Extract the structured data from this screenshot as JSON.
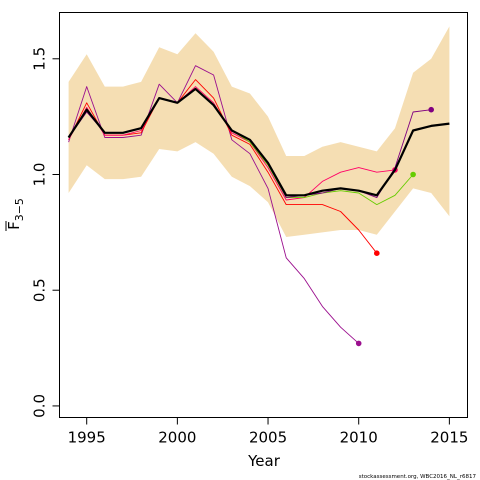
{
  "chart_data": {
    "type": "line",
    "xlabel": "Year",
    "ylabel": {
      "main": "F",
      "sub": "3−5"
    },
    "xlim": [
      1993.5,
      2016.0
    ],
    "ylim": [
      -0.05,
      1.7
    ],
    "x_ticks": [
      1995,
      2000,
      2005,
      2010,
      2015
    ],
    "y_ticks": [
      0.0,
      0.5,
      1.0,
      1.5
    ],
    "y_tick_labels": [
      "0.0",
      "0.5",
      "1.0",
      "1.5"
    ],
    "grid": false,
    "credit": "stockassessment.org, WBC2016_NL_r6817",
    "colors": {
      "band": "#f5deb3",
      "final": "#000000",
      "endpoint_2010": "#9b0f8e",
      "endpoint_2011": "#ff0000",
      "endpoint_2012": "#ff0066",
      "endpoint_2013": "#66cc00",
      "endpoint_2014": "#800080"
    },
    "confidence_band": {
      "x": [
        1994,
        1995,
        1996,
        1997,
        1998,
        1999,
        2000,
        2001,
        2002,
        2003,
        2004,
        2005,
        2006,
        2007,
        2008,
        2009,
        2010,
        2011,
        2012,
        2013,
        2014,
        2015
      ],
      "upper": [
        1.4,
        1.52,
        1.38,
        1.38,
        1.4,
        1.55,
        1.52,
        1.61,
        1.53,
        1.38,
        1.35,
        1.25,
        1.08,
        1.08,
        1.12,
        1.14,
        1.12,
        1.1,
        1.2,
        1.44,
        1.5,
        1.64
      ],
      "lower": [
        0.92,
        1.04,
        0.98,
        0.98,
        0.99,
        1.11,
        1.1,
        1.14,
        1.09,
        0.99,
        0.95,
        0.88,
        0.73,
        0.74,
        0.75,
        0.76,
        0.76,
        0.74,
        0.84,
        0.94,
        0.92,
        0.82
      ]
    },
    "series": [
      {
        "color": "#000000",
        "width": 2.2,
        "endpoint": false,
        "x": [
          1994,
          1995,
          1996,
          1997,
          1998,
          1999,
          2000,
          2001,
          2002,
          2003,
          2004,
          2005,
          2006,
          2007,
          2008,
          2009,
          2010,
          2011,
          2012,
          2013,
          2014,
          2015
        ],
        "values": [
          1.16,
          1.28,
          1.18,
          1.18,
          1.2,
          1.33,
          1.31,
          1.37,
          1.3,
          1.19,
          1.15,
          1.05,
          0.91,
          0.91,
          0.93,
          0.94,
          0.93,
          0.91,
          1.02,
          1.19,
          1.21,
          1.22
        ]
      },
      {
        "color": "#9b0f8e",
        "width": 0.9,
        "endpoint": true,
        "x": [
          1994,
          1995,
          1996,
          1997,
          1998,
          1999,
          2000,
          2001,
          2002,
          2003,
          2004,
          2005,
          2006,
          2007,
          2008,
          2009,
          2010
        ],
        "values": [
          1.14,
          1.38,
          1.16,
          1.16,
          1.17,
          1.39,
          1.31,
          1.47,
          1.43,
          1.15,
          1.09,
          0.94,
          0.64,
          0.55,
          0.43,
          0.34,
          0.27
        ]
      },
      {
        "color": "#ff0000",
        "width": 0.9,
        "endpoint": true,
        "x": [
          1994,
          1995,
          1996,
          1997,
          1998,
          1999,
          2000,
          2001,
          2002,
          2003,
          2004,
          2005,
          2006,
          2007,
          2008,
          2009,
          2010,
          2011
        ],
        "values": [
          1.15,
          1.31,
          1.17,
          1.17,
          1.18,
          1.33,
          1.31,
          1.41,
          1.33,
          1.17,
          1.13,
          1.01,
          0.87,
          0.87,
          0.87,
          0.84,
          0.76,
          0.66
        ]
      },
      {
        "color": "#ff0066",
        "width": 0.9,
        "endpoint": true,
        "x": [
          1994,
          1995,
          1996,
          1997,
          1998,
          1999,
          2000,
          2001,
          2002,
          2003,
          2004,
          2005,
          2006,
          2007,
          2008,
          2009,
          2010,
          2011,
          2012
        ],
        "values": [
          1.15,
          1.29,
          1.17,
          1.17,
          1.19,
          1.33,
          1.31,
          1.38,
          1.31,
          1.18,
          1.14,
          1.03,
          0.89,
          0.9,
          0.97,
          1.01,
          1.03,
          1.01,
          1.02
        ]
      },
      {
        "color": "#66cc00",
        "width": 0.9,
        "endpoint": true,
        "x": [
          1994,
          1995,
          1996,
          1997,
          1998,
          1999,
          2000,
          2001,
          2002,
          2003,
          2004,
          2005,
          2006,
          2007,
          2008,
          2009,
          2010,
          2011,
          2012,
          2013
        ],
        "values": [
          1.16,
          1.28,
          1.18,
          1.18,
          1.2,
          1.33,
          1.31,
          1.37,
          1.3,
          1.19,
          1.14,
          1.04,
          0.9,
          0.9,
          0.92,
          0.93,
          0.92,
          0.87,
          0.91,
          1.0
        ]
      },
      {
        "color": "#800080",
        "width": 0.9,
        "endpoint": true,
        "x": [
          1994,
          1995,
          1996,
          1997,
          1998,
          1999,
          2000,
          2001,
          2002,
          2003,
          2004,
          2005,
          2006,
          2007,
          2008,
          2009,
          2010,
          2011,
          2012,
          2013,
          2014
        ],
        "values": [
          1.16,
          1.27,
          1.18,
          1.18,
          1.2,
          1.33,
          1.31,
          1.37,
          1.3,
          1.19,
          1.15,
          1.05,
          0.9,
          0.91,
          0.92,
          0.94,
          0.93,
          0.9,
          1.03,
          1.27,
          1.28
        ]
      }
    ]
  }
}
